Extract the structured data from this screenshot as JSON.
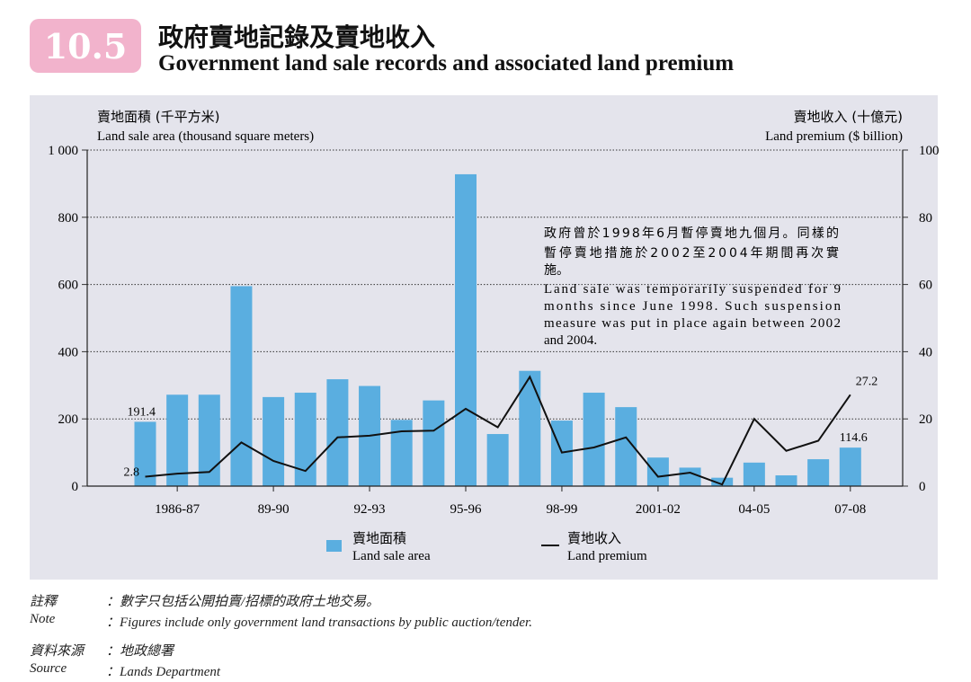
{
  "header": {
    "number": "10.5",
    "title_zh": "政府賣地記錄及賣地收入",
    "title_en": "Government land sale records and associated land premium"
  },
  "colors": {
    "bar": "#5aaee0",
    "line": "#111111",
    "badge": "#f2b3cc",
    "panel": "#e4e4ec"
  },
  "axes": {
    "left_title_zh": "賣地面積 (千平方米)",
    "left_title_en": "Land sale area (thousand square meters)",
    "right_title_zh": "賣地收入 (十億元)",
    "right_title_en": "Land premium ($ billion)"
  },
  "annotation": {
    "zh_line1": "政府曾於1998年6月暫停賣地九個月。同樣的",
    "zh_line2": "暫停賣地措施於2002至2004年期間再次實",
    "zh_line3": "施。",
    "en_line1": "Land sale was temporarily suspended for 9",
    "en_line2": "months since June 1998.  Such suspension",
    "en_line3": "measure was put in place again between 2002",
    "en_line4": "and 2004."
  },
  "legend": {
    "bar_zh": "賣地面積",
    "bar_en": "Land sale area",
    "line_zh": "賣地收入",
    "line_en": "Land premium"
  },
  "notes": {
    "note_label_zh": "註釋",
    "note_text_zh": "：數字只包括公開拍賣/招標的政府土地交易。",
    "note_label_en": "Note",
    "note_text_en": "：Figures include only government land transactions by public auction/tender.",
    "source_label_zh": "資料來源",
    "source_text_zh": "：地政總署",
    "source_label_en": "Source",
    "source_text_en": "：Lands Department"
  },
  "chart_data": {
    "type": "bar",
    "x_tick_labels": [
      "1986-87",
      "89-90",
      "92-93",
      "95-96",
      "98-99",
      "2001-02",
      "04-05",
      "07-08"
    ],
    "x_tick_positions": [
      1,
      4,
      7,
      10,
      13,
      16,
      19,
      22
    ],
    "series": [
      {
        "name": "Land sale area",
        "axis": "left",
        "type": "bar",
        "values": [
          191.4,
          272,
          272,
          595,
          265,
          278,
          318,
          298,
          197,
          255,
          928,
          155,
          343,
          195,
          278,
          235,
          85,
          55,
          25,
          70,
          32,
          80,
          114.6
        ]
      },
      {
        "name": "Land premium",
        "axis": "right",
        "type": "line",
        "values": [
          2.8,
          3.7,
          4.2,
          13,
          7.5,
          4.5,
          14.5,
          15,
          16.3,
          16.5,
          23,
          17.5,
          32.5,
          10,
          11.5,
          14.5,
          2.8,
          4,
          0.5,
          20,
          10.5,
          13.5,
          27.2
        ]
      }
    ],
    "value_labels": {
      "first_bar": "191.4",
      "first_line": "2.8",
      "last_bar": "114.6",
      "last_line": "27.2"
    },
    "ylim_left": [
      0,
      1000
    ],
    "ylim_right": [
      0,
      100
    ],
    "y_ticks_left": [
      "0",
      "200",
      "400",
      "600",
      "800",
      "1 000"
    ],
    "y_ticks_right": [
      "0",
      "20",
      "40",
      "60",
      "80",
      "100"
    ],
    "grid": true,
    "legend_position": "bottom"
  }
}
